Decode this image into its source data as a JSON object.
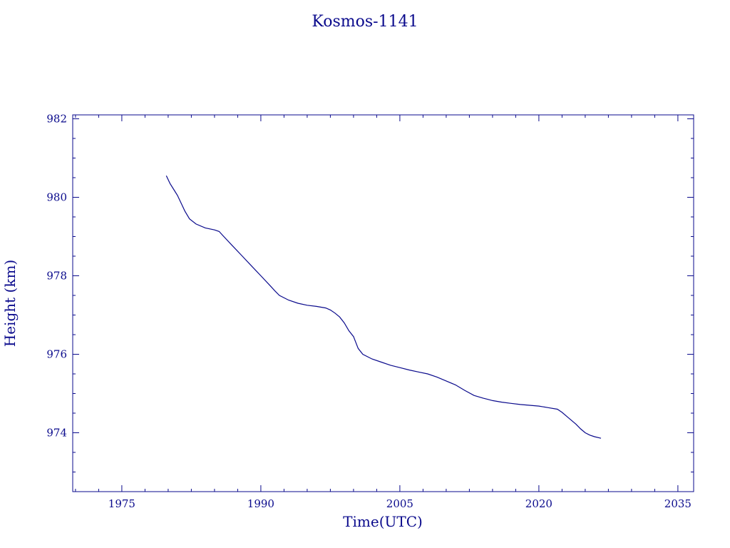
{
  "chart_data": {
    "type": "line",
    "title": "Kosmos-1141",
    "xlabel": "Time(UTC)",
    "ylabel": "Height (km)",
    "xlim": [
      1969.7,
      2036.7
    ],
    "ylim": [
      972.5,
      982.1
    ],
    "x_ticks": [
      1975,
      1990,
      2005,
      2020,
      2035
    ],
    "y_ticks": [
      974,
      976,
      978,
      980,
      982
    ],
    "grid": false,
    "line_color": "#0a0a8c",
    "series": [
      {
        "x": [
          1979.8,
          1980.2,
          1980.6,
          1981.0,
          1981.4,
          1981.8,
          1982.3,
          1983.0,
          1984.0,
          1985.0,
          1985.5,
          1986.0,
          1987.0,
          1988.0,
          1989.0,
          1990.0,
          1991.0,
          1991.5,
          1992.0,
          1993.0,
          1994.0,
          1995.0,
          1996.0,
          1997.0,
          1997.5,
          1998.0,
          1998.5,
          1999.0,
          1999.5,
          2000.0,
          2000.5,
          2001.0,
          2002.0,
          2003.0,
          2004.0,
          2005.0,
          2006.0,
          2007.0,
          2008.0,
          2009.0,
          2010.0,
          2011.0,
          2012.0,
          2013.0,
          2014.0,
          2014.5,
          2015.0,
          2015.5,
          2016.0,
          2017.0,
          2018.0,
          2019.0,
          2020.0,
          2021.0,
          2022.0,
          2022.5,
          2023.0,
          2023.5,
          2024.0,
          2024.5,
          2025.0,
          2025.5,
          2026.0,
          2026.7
        ],
        "y": [
          980.55,
          980.35,
          980.2,
          980.05,
          979.85,
          979.65,
          979.45,
          979.32,
          979.22,
          979.17,
          979.13,
          979.0,
          978.75,
          978.5,
          978.25,
          978.0,
          977.75,
          977.62,
          977.5,
          977.38,
          977.3,
          977.25,
          977.22,
          977.18,
          977.13,
          977.05,
          976.95,
          976.8,
          976.6,
          976.45,
          976.15,
          976.0,
          975.88,
          975.8,
          975.72,
          975.66,
          975.6,
          975.55,
          975.5,
          975.42,
          975.32,
          975.22,
          975.08,
          974.95,
          974.88,
          974.85,
          974.82,
          974.8,
          974.78,
          974.75,
          974.72,
          974.7,
          974.68,
          974.64,
          974.6,
          974.52,
          974.42,
          974.32,
          974.22,
          974.1,
          974.0,
          973.94,
          973.9,
          973.86
        ]
      }
    ]
  }
}
